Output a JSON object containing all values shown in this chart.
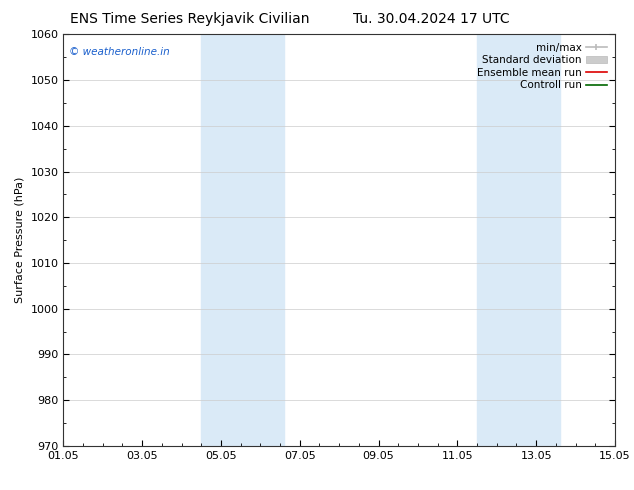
{
  "title_left": "ENS Time Series Reykjavik Civilian",
  "title_right": "Tu. 30.04.2024 17 UTC",
  "ylabel": "Surface Pressure (hPa)",
  "ylim": [
    970,
    1060
  ],
  "yticks": [
    970,
    980,
    990,
    1000,
    1010,
    1020,
    1030,
    1040,
    1050,
    1060
  ],
  "xlim_start": 0,
  "xlim_end": 14,
  "xtick_positions": [
    0,
    2,
    4,
    6,
    8,
    10,
    12,
    14
  ],
  "xtick_labels": [
    "01.05",
    "03.05",
    "05.05",
    "07.05",
    "09.05",
    "11.05",
    "13.05",
    "15.05"
  ],
  "shaded_bands": [
    {
      "xmin": 3.5,
      "xmax": 5.6,
      "color": "#daeaf7"
    },
    {
      "xmin": 10.5,
      "xmax": 12.6,
      "color": "#daeaf7"
    }
  ],
  "watermark_text": "© weatheronline.in",
  "watermark_color": "#1a5fcc",
  "legend_items": [
    {
      "label": "min/max",
      "color": "#bbbbbb",
      "lw": 1.2
    },
    {
      "label": "Standard deviation",
      "color": "#cccccc",
      "lw": 5
    },
    {
      "label": "Ensemble mean run",
      "color": "#dd0000",
      "lw": 1.2
    },
    {
      "label": "Controll run",
      "color": "#006600",
      "lw": 1.2
    }
  ],
  "bg_color": "#ffffff",
  "plot_bg_color": "#ffffff",
  "title_fontsize": 10,
  "axis_label_fontsize": 8,
  "tick_fontsize": 8,
  "legend_fontsize": 7.5
}
